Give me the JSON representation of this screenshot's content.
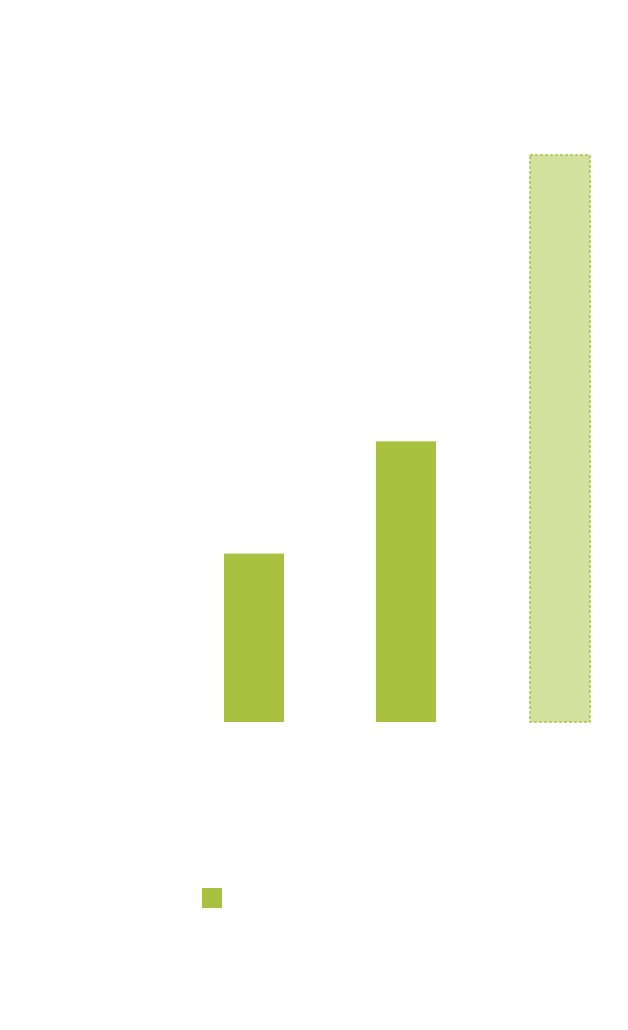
{
  "chart_data": {
    "type": "bar",
    "categories": [
      "",
      "",
      ""
    ],
    "values": [
      30,
      50,
      101
    ],
    "projected": [
      false,
      false,
      true
    ],
    "ylim": [
      0,
      101
    ],
    "grid": false,
    "legend": "bottom-left",
    "colors": {
      "bar": "#aac13f",
      "projected_fill": "#d4e09d",
      "projected_border": "#aac13f",
      "legend_swatch": "#aac13f"
    }
  }
}
